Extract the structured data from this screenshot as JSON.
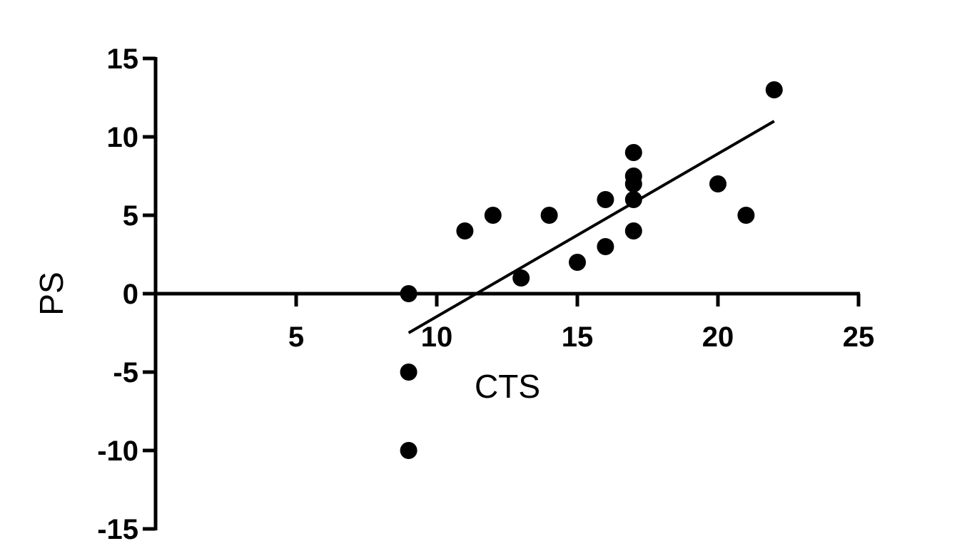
{
  "chart_data": {
    "type": "scatter",
    "xlabel": "CTS",
    "ylabel": "PS",
    "xlim": [
      0,
      25
    ],
    "ylim": [
      -15,
      15
    ],
    "x_ticks": [
      5,
      10,
      15,
      20,
      25
    ],
    "y_ticks": [
      15,
      10,
      5,
      0,
      -5,
      -10,
      -15
    ],
    "x_tick_labels": [
      "5",
      "10",
      "15",
      "20",
      "25"
    ],
    "y_tick_labels": [
      "15",
      "10",
      "5",
      "0",
      "-5",
      "-10",
      "-15"
    ],
    "grid": false,
    "legend": "none",
    "point_color": "#000000",
    "series": [
      {
        "points": [
          {
            "x": 9,
            "y": 0
          },
          {
            "x": 9,
            "y": -5
          },
          {
            "x": 9,
            "y": -10
          },
          {
            "x": 11,
            "y": 4
          },
          {
            "x": 12,
            "y": 5
          },
          {
            "x": 13,
            "y": 1
          },
          {
            "x": 14,
            "y": 5
          },
          {
            "x": 15,
            "y": 2
          },
          {
            "x": 16,
            "y": 6
          },
          {
            "x": 16,
            "y": 3
          },
          {
            "x": 17,
            "y": 9
          },
          {
            "x": 17,
            "y": 7.5
          },
          {
            "x": 17,
            "y": 7
          },
          {
            "x": 17,
            "y": 6
          },
          {
            "x": 17,
            "y": 4
          },
          {
            "x": 20,
            "y": 7
          },
          {
            "x": 21,
            "y": 5
          },
          {
            "x": 22,
            "y": 13
          }
        ]
      }
    ],
    "fit_line": {
      "x": [
        9,
        22
      ],
      "y": [
        -2.5,
        11
      ]
    }
  }
}
